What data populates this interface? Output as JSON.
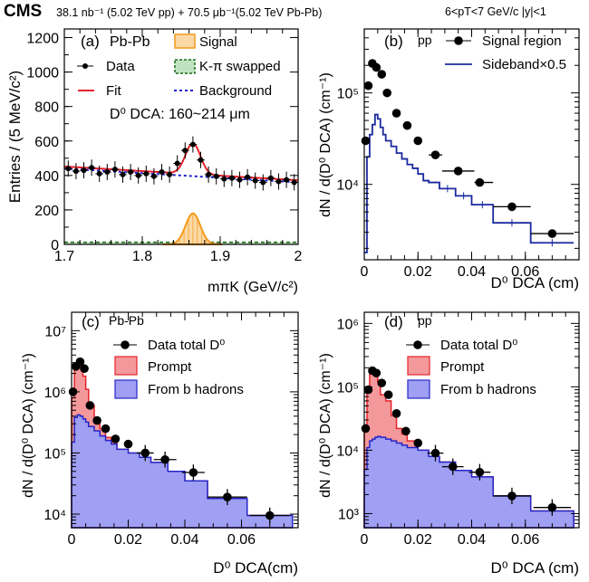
{
  "header": {
    "experiment": "CMS",
    "lumi": "38.1 nb⁻¹ (5.02 TeV pp) + 70.5 μb⁻¹(5.02 TeV Pb-Pb)",
    "kinematics": "6<pT<7 GeV/c   |y|<1"
  },
  "colors": {
    "data": "#000000",
    "fit": "#e8222b",
    "background": "#1f1fd6",
    "signal": "#f39a1c",
    "swapped": "#1a6b1a",
    "prompt": "#f4999b",
    "nonprompt": "#9f9ff3",
    "sideband": "#1c2a9e"
  },
  "chart_data": [
    {
      "panel": "(a)",
      "type": "line",
      "system_label": "Pb-Pb",
      "xlabel": "mπK (GeV/c²)",
      "ylabel": "Entries / (5 MeV/c²)",
      "xlim": [
        1.7,
        2.0
      ],
      "ylim": [
        0,
        1250
      ],
      "xticks": [
        "1.7",
        "1.8",
        "1.9",
        "2"
      ],
      "yticks": [
        "0",
        "200",
        "400",
        "600",
        "800",
        "1000",
        "1200"
      ],
      "annotation": "D⁰ DCA: 160~214 μm",
      "legend": [
        "Data",
        "Fit",
        "Signal",
        "K-π swapped",
        "Background"
      ],
      "data_x": [
        1.705,
        1.715,
        1.725,
        1.735,
        1.745,
        1.755,
        1.765,
        1.775,
        1.785,
        1.795,
        1.805,
        1.815,
        1.825,
        1.835,
        1.845,
        1.855,
        1.865,
        1.875,
        1.885,
        1.895,
        1.905,
        1.915,
        1.925,
        1.935,
        1.945,
        1.955,
        1.965,
        1.975,
        1.985,
        1.995
      ],
      "data_y": [
        440,
        425,
        430,
        445,
        410,
        420,
        435,
        405,
        420,
        400,
        410,
        395,
        420,
        405,
        470,
        545,
        580,
        490,
        405,
        395,
        380,
        385,
        375,
        390,
        370,
        360,
        385,
        365,
        375,
        360
      ],
      "signal_peak": {
        "mean": 1.865,
        "sigma": 0.0095,
        "height": 180
      },
      "background_line": {
        "at_1.7": 440,
        "at_2.0": 360
      },
      "swapped_level": 12
    },
    {
      "panel": "(b)",
      "type": "line",
      "system_label": "pp",
      "xlabel": "D⁰ DCA (cm)",
      "ylabel": "dN / d(D⁰ DCA) (cm⁻¹)",
      "xlim": [
        0,
        0.08
      ],
      "ylog": true,
      "ylim": [
        1500,
        500000
      ],
      "xticks": [
        "0",
        "0.02",
        "0.04",
        "0.06"
      ],
      "yticks": [
        "10⁴",
        "10⁵"
      ],
      "legend": [
        "Signal region",
        "Sideband×0.5"
      ],
      "signal_points": [
        {
          "x": 0.0005,
          "y": 30000
        },
        {
          "x": 0.0015,
          "y": 120000
        },
        {
          "x": 0.003,
          "y": 210000
        },
        {
          "x": 0.0045,
          "y": 190000
        },
        {
          "x": 0.0065,
          "y": 160000
        },
        {
          "x": 0.0085,
          "y": 100000
        },
        {
          "x": 0.012,
          "y": 60000
        },
        {
          "x": 0.016,
          "y": 44000
        },
        {
          "x": 0.02,
          "y": 30000
        },
        {
          "x": 0.0265,
          "y": 21000
        },
        {
          "x": 0.035,
          "y": 14000
        },
        {
          "x": 0.043,
          "y": 10500
        },
        {
          "x": 0.055,
          "y": 5700
        },
        {
          "x": 0.07,
          "y": 2900
        }
      ],
      "signal_bins": [
        [
          0.024,
          0.029
        ],
        [
          0.029,
          0.041
        ],
        [
          0.041,
          0.048
        ],
        [
          0.048,
          0.062
        ],
        [
          0.062,
          0.078
        ]
      ],
      "sideband_edges": [
        0,
        0.001,
        0.002,
        0.003,
        0.004,
        0.005,
        0.006,
        0.007,
        0.008,
        0.01,
        0.012,
        0.014,
        0.016,
        0.018,
        0.02,
        0.022,
        0.024,
        0.028,
        0.034,
        0.04,
        0.048,
        0.062,
        0.078
      ],
      "sideband_values": [
        1800,
        20000,
        35000,
        45000,
        58000,
        52000,
        42000,
        35000,
        30000,
        26000,
        22000,
        19000,
        16500,
        15000,
        13000,
        11000,
        10500,
        9000,
        7500,
        6000,
        3800,
        2300
      ]
    },
    {
      "panel": "(c)",
      "type": "area",
      "system_label": "Pb-Pb",
      "xlabel": "D⁰ DCA(cm)",
      "ylabel": "dN / d(D⁰ DCA) (cm⁻¹)",
      "xlim": [
        0,
        0.08
      ],
      "ylog": true,
      "ylim": [
        6000,
        20000000
      ],
      "xticks": [
        "0",
        "0.02",
        "0.04",
        "0.06"
      ],
      "yticks": [
        "10⁴",
        "10⁵",
        "10⁶",
        "10⁷"
      ],
      "legend": [
        "Data total D⁰",
        "Prompt",
        "From b hadrons"
      ],
      "bin_edges": [
        0,
        0.001,
        0.002,
        0.003,
        0.004,
        0.005,
        0.006,
        0.008,
        0.01,
        0.012,
        0.014,
        0.016,
        0.02,
        0.024,
        0.028,
        0.034,
        0.04,
        0.048,
        0.062,
        0.078
      ],
      "total": [
        800000,
        2500000,
        3000000,
        2500000,
        1800000,
        1100000,
        600000,
        350000,
        250000,
        180000,
        150000,
        115000,
        100000,
        85000,
        70000,
        50000,
        35000,
        18000,
        9500
      ],
      "from_b": [
        150000,
        380000,
        420000,
        400000,
        360000,
        320000,
        270000,
        230000,
        190000,
        160000,
        140000,
        115000,
        100000,
        85000,
        70000,
        50000,
        35000,
        18000,
        9500
      ],
      "data_points": [
        {
          "x": 0.0005,
          "y": 1000000
        },
        {
          "x": 0.0015,
          "y": 2600000
        },
        {
          "x": 0.003,
          "y": 3100000
        },
        {
          "x": 0.0045,
          "y": 2400000
        },
        {
          "x": 0.0065,
          "y": 600000
        },
        {
          "x": 0.009,
          "y": 340000
        },
        {
          "x": 0.012,
          "y": 250000
        },
        {
          "x": 0.0155,
          "y": 170000
        },
        {
          "x": 0.02,
          "y": 140000
        },
        {
          "x": 0.026,
          "y": 100000
        },
        {
          "x": 0.033,
          "y": 78000
        },
        {
          "x": 0.043,
          "y": 48000
        },
        {
          "x": 0.055,
          "y": 19000
        },
        {
          "x": 0.07,
          "y": 9500
        }
      ]
    },
    {
      "panel": "(d)",
      "type": "area",
      "system_label": "pp",
      "xlabel": "D⁰ DCA (cm)",
      "ylabel": "dN / d(D⁰ DCA) (cm⁻¹)",
      "xlim": [
        0,
        0.08
      ],
      "ylog": true,
      "ylim": [
        600,
        1500000
      ],
      "xticks": [
        "0",
        "0.02",
        "0.04",
        "0.06"
      ],
      "yticks": [
        "10³",
        "10⁴",
        "10⁵",
        "10⁶"
      ],
      "legend": [
        "Data total D⁰",
        "Prompt",
        "From b hadrons"
      ],
      "bin_edges": [
        0,
        0.001,
        0.002,
        0.003,
        0.004,
        0.005,
        0.006,
        0.008,
        0.01,
        0.012,
        0.014,
        0.016,
        0.02,
        0.024,
        0.028,
        0.034,
        0.04,
        0.048,
        0.062,
        0.078
      ],
      "total": [
        25000,
        100000,
        180000,
        175000,
        150000,
        120000,
        75000,
        60000,
        35000,
        22000,
        18000,
        14000,
        10000,
        8000,
        6500,
        4800,
        3800,
        1900,
        1100
      ],
      "from_b": [
        5000,
        11000,
        14000,
        15000,
        16000,
        16500,
        16000,
        15000,
        14000,
        13000,
        12000,
        11000,
        10000,
        8000,
        6500,
        4800,
        3800,
        1900,
        1100
      ],
      "data_points": [
        {
          "x": 0.0005,
          "y": 22000
        },
        {
          "x": 0.0015,
          "y": 90000
        },
        {
          "x": 0.003,
          "y": 180000
        },
        {
          "x": 0.0045,
          "y": 165000
        },
        {
          "x": 0.0065,
          "y": 115000
        },
        {
          "x": 0.009,
          "y": 75000
        },
        {
          "x": 0.012,
          "y": 38000
        },
        {
          "x": 0.0155,
          "y": 20000
        },
        {
          "x": 0.02,
          "y": 13000
        },
        {
          "x": 0.0265,
          "y": 9000
        },
        {
          "x": 0.033,
          "y": 5500
        },
        {
          "x": 0.043,
          "y": 4500
        },
        {
          "x": 0.055,
          "y": 1900
        },
        {
          "x": 0.07,
          "y": 1250
        }
      ]
    }
  ]
}
